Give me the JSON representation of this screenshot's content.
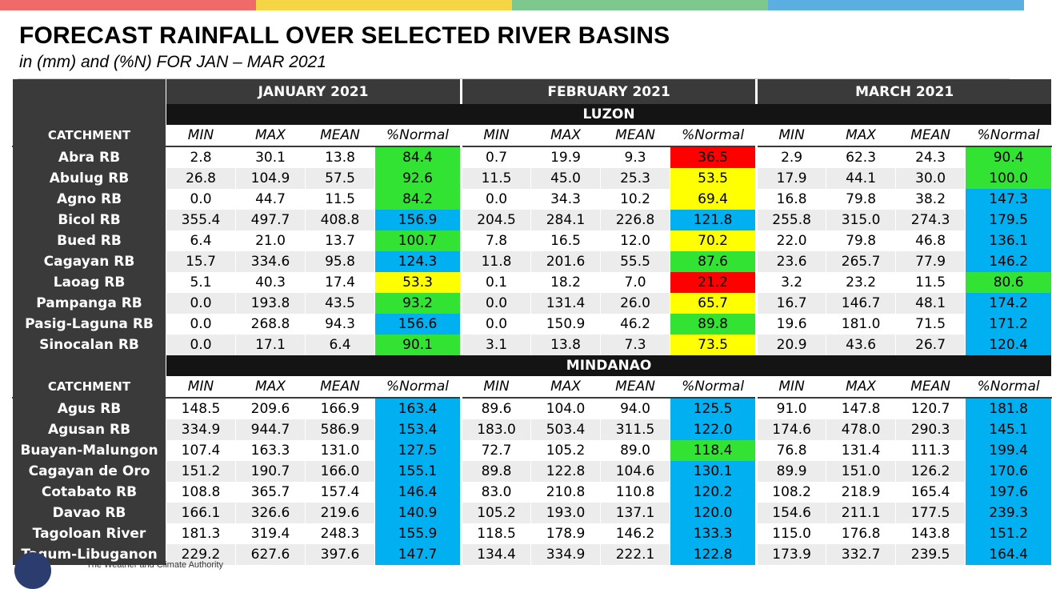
{
  "colors": {
    "bar1": "#f06a6a",
    "bar2": "#f5d445",
    "bar3": "#7cc88e",
    "bar4": "#5aaee0",
    "above_normal": "#00b0f0",
    "near_normal": "#33e333",
    "below_normal": "#ffff00",
    "way_below_normal": "#ff0000"
  },
  "title": "FORECAST RAINFALL OVER SELECTED RIVER BASINS",
  "subtitle": "in (mm) and (%N) FOR JAN – MAR 2021",
  "footer_text": "The Weather and Climate Authority",
  "months": [
    "JANUARY 2021",
    "FEBRUARY 2021",
    "MARCH 2021"
  ],
  "catchment_label": "CATCHMENT",
  "col_labels": [
    "MIN",
    "MAX",
    "MEAN",
    "%Normal"
  ],
  "sections": [
    {
      "name": "LUZON",
      "rows": [
        {
          "name": "Abra RB",
          "values": [
            "2.8",
            "30.1",
            "13.8",
            "84.4",
            "0.7",
            "19.9",
            "9.3",
            "36.5",
            "2.9",
            "62.3",
            "24.3",
            "90.4"
          ],
          "classes": [
            "green",
            "red",
            "green"
          ]
        },
        {
          "name": "Abulug RB",
          "values": [
            "26.8",
            "104.9",
            "57.5",
            "92.6",
            "11.5",
            "45.0",
            "25.3",
            "53.5",
            "17.9",
            "44.1",
            "30.0",
            "100.0"
          ],
          "classes": [
            "green",
            "yellow",
            "green"
          ]
        },
        {
          "name": "Agno RB",
          "values": [
            "0.0",
            "44.7",
            "11.5",
            "84.2",
            "0.0",
            "34.3",
            "10.2",
            "69.4",
            "16.8",
            "79.8",
            "38.2",
            "147.3"
          ],
          "classes": [
            "green",
            "yellow",
            "blue"
          ]
        },
        {
          "name": "Bicol RB",
          "values": [
            "355.4",
            "497.7",
            "408.8",
            "156.9",
            "204.5",
            "284.1",
            "226.8",
            "121.8",
            "255.8",
            "315.0",
            "274.3",
            "179.5"
          ],
          "classes": [
            "blue",
            "blue",
            "blue"
          ]
        },
        {
          "name": "Bued RB",
          "values": [
            "6.4",
            "21.0",
            "13.7",
            "100.7",
            "7.8",
            "16.5",
            "12.0",
            "70.2",
            "22.0",
            "79.8",
            "46.8",
            "136.1"
          ],
          "classes": [
            "green",
            "yellow",
            "blue"
          ]
        },
        {
          "name": "Cagayan RB",
          "values": [
            "15.7",
            "334.6",
            "95.8",
            "124.3",
            "11.8",
            "201.6",
            "55.5",
            "87.6",
            "23.6",
            "265.7",
            "77.9",
            "146.2"
          ],
          "classes": [
            "blue",
            "green",
            "blue"
          ]
        },
        {
          "name": "Laoag RB",
          "values": [
            "5.1",
            "40.3",
            "17.4",
            "53.3",
            "0.1",
            "18.2",
            "7.0",
            "21.2",
            "3.2",
            "23.2",
            "11.5",
            "80.6"
          ],
          "classes": [
            "yellow",
            "red",
            "green"
          ]
        },
        {
          "name": "Pampanga RB",
          "values": [
            "0.0",
            "193.8",
            "43.5",
            "93.2",
            "0.0",
            "131.4",
            "26.0",
            "65.7",
            "16.7",
            "146.7",
            "48.1",
            "174.2"
          ],
          "classes": [
            "green",
            "yellow",
            "blue"
          ]
        },
        {
          "name": "Pasig-Laguna RB",
          "values": [
            "0.0",
            "268.8",
            "94.3",
            "156.6",
            "0.0",
            "150.9",
            "46.2",
            "89.8",
            "19.6",
            "181.0",
            "71.5",
            "171.2"
          ],
          "classes": [
            "blue",
            "green",
            "blue"
          ]
        },
        {
          "name": "Sinocalan RB",
          "values": [
            "0.0",
            "17.1",
            "6.4",
            "90.1",
            "3.1",
            "13.8",
            "7.3",
            "73.5",
            "20.9",
            "43.6",
            "26.7",
            "120.4"
          ],
          "classes": [
            "green",
            "yellow",
            "blue"
          ]
        }
      ]
    },
    {
      "name": "MINDANAO",
      "rows": [
        {
          "name": "Agus RB",
          "values": [
            "148.5",
            "209.6",
            "166.9",
            "163.4",
            "89.6",
            "104.0",
            "94.0",
            "125.5",
            "91.0",
            "147.8",
            "120.7",
            "181.8"
          ],
          "classes": [
            "blue",
            "blue",
            "blue"
          ]
        },
        {
          "name": "Agusan RB",
          "values": [
            "334.9",
            "944.7",
            "586.9",
            "153.4",
            "183.0",
            "503.4",
            "311.5",
            "122.0",
            "174.6",
            "478.0",
            "290.3",
            "145.1"
          ],
          "classes": [
            "blue",
            "blue",
            "blue"
          ]
        },
        {
          "name": "Buayan-Malungon",
          "values": [
            "107.4",
            "163.3",
            "131.0",
            "127.5",
            "72.7",
            "105.2",
            "89.0",
            "118.4",
            "76.8",
            "131.4",
            "111.3",
            "199.4"
          ],
          "classes": [
            "blue",
            "green",
            "blue"
          ]
        },
        {
          "name": "Cagayan de Oro",
          "values": [
            "151.2",
            "190.7",
            "166.0",
            "155.1",
            "89.8",
            "122.8",
            "104.6",
            "130.1",
            "89.9",
            "151.0",
            "126.2",
            "170.6"
          ],
          "classes": [
            "blue",
            "blue",
            "blue"
          ]
        },
        {
          "name": "Cotabato RB",
          "values": [
            "108.8",
            "365.7",
            "157.4",
            "146.4",
            "83.0",
            "210.8",
            "110.8",
            "120.2",
            "108.2",
            "218.9",
            "165.4",
            "197.6"
          ],
          "classes": [
            "blue",
            "blue",
            "blue"
          ]
        },
        {
          "name": "Davao RB",
          "values": [
            "166.1",
            "326.6",
            "219.6",
            "140.9",
            "105.2",
            "193.0",
            "137.1",
            "120.0",
            "154.6",
            "211.1",
            "177.5",
            "239.3"
          ],
          "classes": [
            "blue",
            "blue",
            "blue"
          ]
        },
        {
          "name": "Tagoloan River",
          "values": [
            "181.3",
            "319.4",
            "248.3",
            "155.9",
            "118.5",
            "178.9",
            "146.2",
            "133.3",
            "115.0",
            "176.8",
            "143.8",
            "151.2"
          ],
          "classes": [
            "blue",
            "blue",
            "blue"
          ]
        },
        {
          "name": "Tagum-Libuganon",
          "values": [
            "229.2",
            "627.6",
            "397.6",
            "147.7",
            "134.4",
            "334.9",
            "222.1",
            "122.8",
            "173.9",
            "332.7",
            "239.5",
            "164.4"
          ],
          "classes": [
            "blue",
            "blue",
            "blue"
          ]
        }
      ]
    }
  ]
}
